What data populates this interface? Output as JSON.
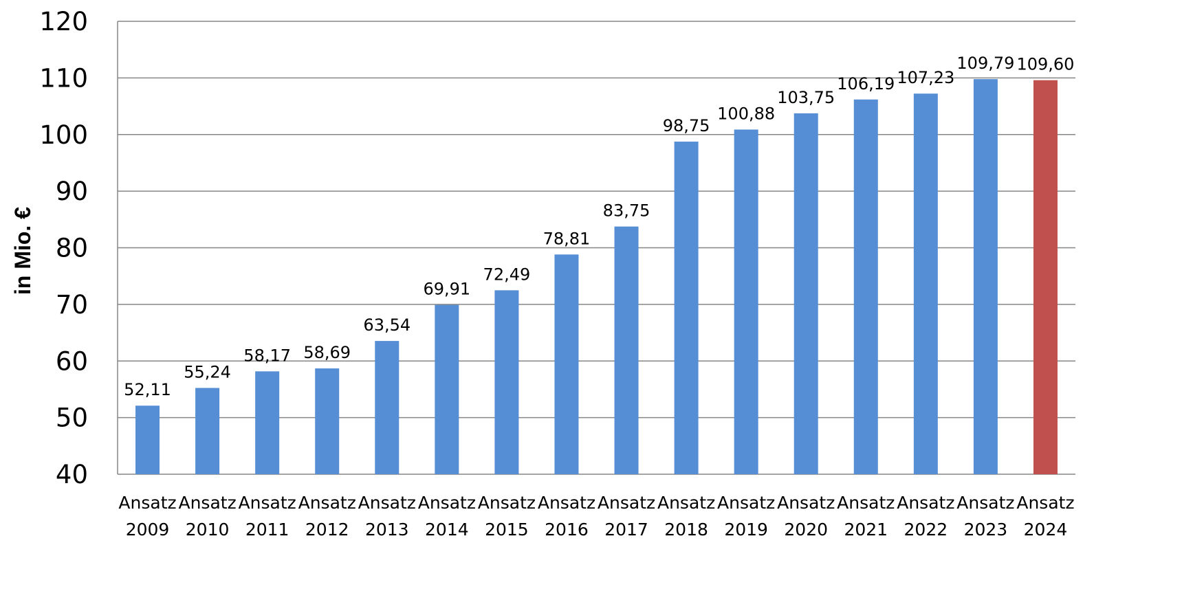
{
  "chart_data": {
    "type": "bar",
    "title": "",
    "xlabel": "",
    "ylabel": "in Mio. €",
    "ylim": [
      40,
      120
    ],
    "yticks": [
      "40",
      "50",
      "60",
      "70",
      "80",
      "90",
      "100",
      "110",
      "120"
    ],
    "grid": true,
    "legend": "none",
    "categories": [
      [
        "Ansatz",
        "2009"
      ],
      [
        "Ansatz",
        "2010"
      ],
      [
        "Ansatz",
        "2011"
      ],
      [
        "Ansatz",
        "2012"
      ],
      [
        "Ansatz",
        "2013"
      ],
      [
        "Ansatz",
        "2014"
      ],
      [
        "Ansatz",
        "2015"
      ],
      [
        "Ansatz",
        "2016"
      ],
      [
        "Ansatz",
        "2017"
      ],
      [
        "Ansatz",
        "2018"
      ],
      [
        "Ansatz",
        "2019"
      ],
      [
        "Ansatz",
        "2020"
      ],
      [
        "Ansatz",
        "2021"
      ],
      [
        "Ansatz",
        "2022"
      ],
      [
        "Ansatz",
        "2023"
      ],
      [
        "Ansatz",
        "2024"
      ]
    ],
    "values": [
      52.11,
      55.24,
      58.17,
      58.69,
      63.54,
      69.91,
      72.49,
      78.81,
      83.75,
      98.75,
      100.88,
      103.75,
      106.19,
      107.23,
      109.79,
      109.6
    ],
    "value_labels": [
      "52,11",
      "55,24",
      "58,17",
      "58,69",
      "63,54",
      "69,91",
      "72,49",
      "78,81",
      "83,75",
      "98,75",
      "100,88",
      "103,75",
      "106,19",
      "107,23",
      "109,79",
      "109,60"
    ],
    "bar_colors": [
      "#558ed5",
      "#558ed5",
      "#558ed5",
      "#558ed5",
      "#558ed5",
      "#558ed5",
      "#558ed5",
      "#558ed5",
      "#558ed5",
      "#558ed5",
      "#558ed5",
      "#558ed5",
      "#558ed5",
      "#558ed5",
      "#558ed5",
      "#c0504d"
    ],
    "colors": {
      "bar": "#558ed5",
      "highlight_bar": "#c0504d",
      "grid": "#868686",
      "axis": "#868686"
    }
  }
}
